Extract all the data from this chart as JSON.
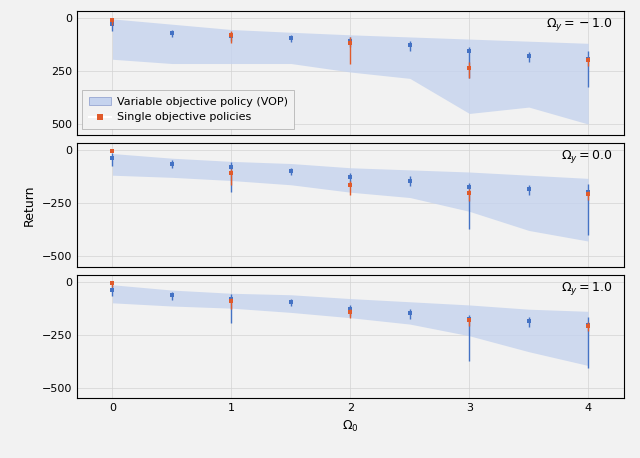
{
  "panels": [
    {
      "label": "$\\Omega_y = -1.0$",
      "blue_x": [
        0.0,
        0.5,
        1.0,
        1.5,
        2.0,
        2.5,
        3.0,
        3.5,
        4.0
      ],
      "blue_y": [
        30,
        70,
        85,
        95,
        110,
        130,
        155,
        180,
        195
      ],
      "blue_yerr_lo": [
        25,
        15,
        20,
        15,
        20,
        20,
        20,
        20,
        40
      ],
      "blue_yerr_hi": [
        30,
        20,
        25,
        20,
        25,
        25,
        130,
        30,
        130
      ],
      "orange_x": [
        0.0,
        1.0,
        2.0,
        3.0,
        4.0
      ],
      "orange_y": [
        8,
        82,
        120,
        235,
        200
      ],
      "orange_yerr_lo": [
        8,
        18,
        28,
        28,
        18
      ],
      "orange_yerr_hi": [
        28,
        38,
        95,
        48,
        28
      ],
      "fill_upper": [
        5,
        30,
        55,
        68,
        80,
        90,
        100,
        110,
        120
      ],
      "fill_lower": [
        195,
        215,
        215,
        215,
        255,
        285,
        450,
        420,
        500
      ]
    },
    {
      "label": "$\\Omega_y = 0.0$",
      "blue_x": [
        0.0,
        0.5,
        1.0,
        1.5,
        2.0,
        2.5,
        3.0,
        3.5,
        4.0
      ],
      "blue_y": [
        40,
        65,
        80,
        100,
        130,
        145,
        175,
        185,
        200
      ],
      "blue_yerr_lo": [
        25,
        15,
        20,
        15,
        20,
        20,
        20,
        20,
        40
      ],
      "blue_yerr_hi": [
        35,
        20,
        120,
        20,
        30,
        25,
        200,
        30,
        200
      ],
      "orange_x": [
        0.0,
        1.0,
        2.0,
        3.0,
        4.0
      ],
      "orange_y": [
        5,
        108,
        165,
        205,
        210
      ],
      "orange_yerr_lo": [
        5,
        18,
        18,
        18,
        18
      ],
      "orange_yerr_hi": [
        8,
        58,
        48,
        38,
        28
      ],
      "fill_upper": [
        18,
        40,
        55,
        65,
        85,
        95,
        105,
        120,
        135
      ],
      "fill_lower": [
        120,
        130,
        145,
        165,
        200,
        225,
        290,
        380,
        430
      ]
    },
    {
      "label": "$\\Omega_y = 1.0$",
      "blue_x": [
        0.0,
        0.5,
        1.0,
        1.5,
        2.0,
        2.5,
        3.0,
        3.5,
        4.0
      ],
      "blue_y": [
        40,
        65,
        80,
        95,
        130,
        150,
        175,
        185,
        205
      ],
      "blue_yerr_lo": [
        25,
        15,
        20,
        15,
        20,
        20,
        20,
        20,
        40
      ],
      "blue_yerr_hi": [
        30,
        20,
        115,
        20,
        30,
        25,
        200,
        30,
        200
      ],
      "orange_x": [
        0.0,
        1.0,
        2.0,
        3.0,
        4.0
      ],
      "orange_y": [
        8,
        93,
        143,
        183,
        210
      ],
      "orange_yerr_lo": [
        8,
        18,
        13,
        13,
        18
      ],
      "orange_yerr_hi": [
        18,
        38,
        28,
        28,
        23
      ],
      "fill_upper": [
        15,
        40,
        55,
        62,
        80,
        95,
        110,
        130,
        140
      ],
      "fill_lower": [
        100,
        115,
        125,
        145,
        170,
        200,
        255,
        330,
        395
      ]
    }
  ],
  "blue_color": "#4472C4",
  "blue_fill_color": "#C5D3EE",
  "orange_color": "#E05A2B",
  "xlabel": "$\\Omega_0$",
  "ylabel": "Return",
  "label_fontsize": 9,
  "tick_fontsize": 8,
  "legend_fontsize": 8,
  "panel_label_fontsize": 9,
  "bg_color": "#f0f0f0"
}
